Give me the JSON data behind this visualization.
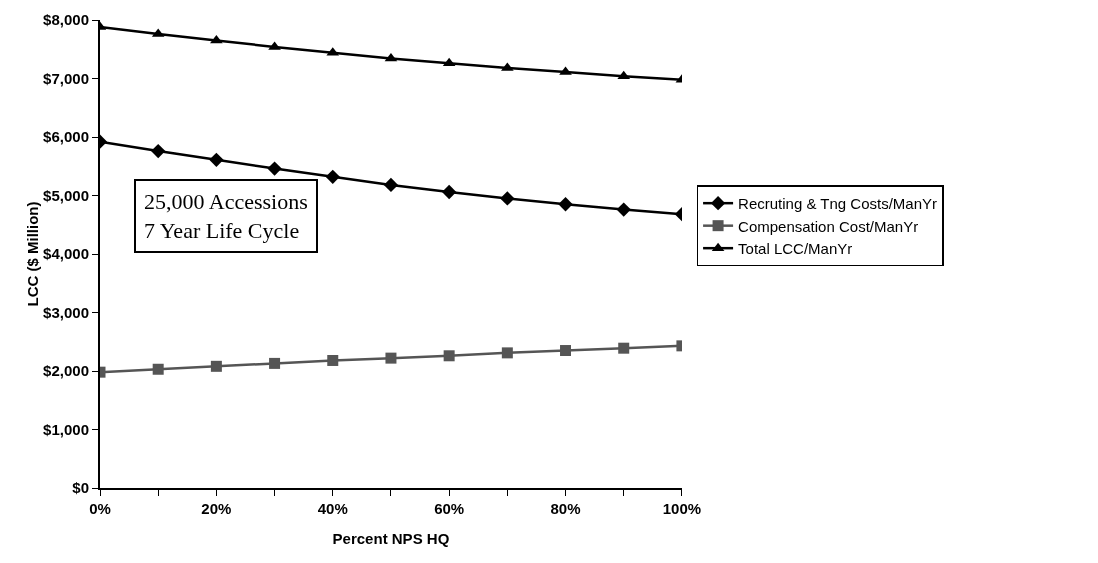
{
  "chart_data": {
    "type": "line",
    "xlabel": "Percent NPS HQ",
    "ylabel": "LCC ($ Million)",
    "x": [
      0,
      10,
      20,
      30,
      40,
      50,
      60,
      70,
      80,
      90,
      100
    ],
    "xlim": [
      0,
      100
    ],
    "xticks": [
      {
        "value": 0,
        "label": "0%"
      },
      {
        "value": 10,
        "label": null
      },
      {
        "value": 20,
        "label": "20%"
      },
      {
        "value": 30,
        "label": null
      },
      {
        "value": 40,
        "label": "40%"
      },
      {
        "value": 50,
        "label": null
      },
      {
        "value": 60,
        "label": "60%"
      },
      {
        "value": 70,
        "label": null
      },
      {
        "value": 80,
        "label": "80%"
      },
      {
        "value": 90,
        "label": null
      },
      {
        "value": 100,
        "label": "100%"
      }
    ],
    "ylim": [
      0,
      8000
    ],
    "yticks": [
      {
        "value": 0,
        "label": "$0"
      },
      {
        "value": 1000,
        "label": "$1,000"
      },
      {
        "value": 2000,
        "label": "$2,000"
      },
      {
        "value": 3000,
        "label": "$3,000"
      },
      {
        "value": 4000,
        "label": "$4,000"
      },
      {
        "value": 5000,
        "label": "$5,000"
      },
      {
        "value": 6000,
        "label": "$6,000"
      },
      {
        "value": 7000,
        "label": "$7,000"
      },
      {
        "value": 8000,
        "label": "$8,000"
      }
    ],
    "series": [
      {
        "name": "Recruting & Tng Costs/ManYr",
        "color": "#000000",
        "marker": "diamond",
        "values": [
          5920,
          5760,
          5610,
          5460,
          5320,
          5180,
          5060,
          4950,
          4850,
          4760,
          4680
        ]
      },
      {
        "name": "Compensation Cost/ManYr",
        "color": "#555555",
        "marker": "square",
        "values": [
          1980,
          2030,
          2080,
          2130,
          2180,
          2220,
          2260,
          2310,
          2350,
          2390,
          2430
        ]
      },
      {
        "name": "Total LCC/ManYr",
        "color": "#000000",
        "marker": "triangle",
        "values": [
          7880,
          7760,
          7650,
          7540,
          7440,
          7340,
          7260,
          7180,
          7110,
          7040,
          6980
        ]
      }
    ],
    "annotations": [
      "25,000 Accessions\n7 Year Life Cycle"
    ],
    "grid": false,
    "legend": "right",
    "line_style": "solid"
  }
}
